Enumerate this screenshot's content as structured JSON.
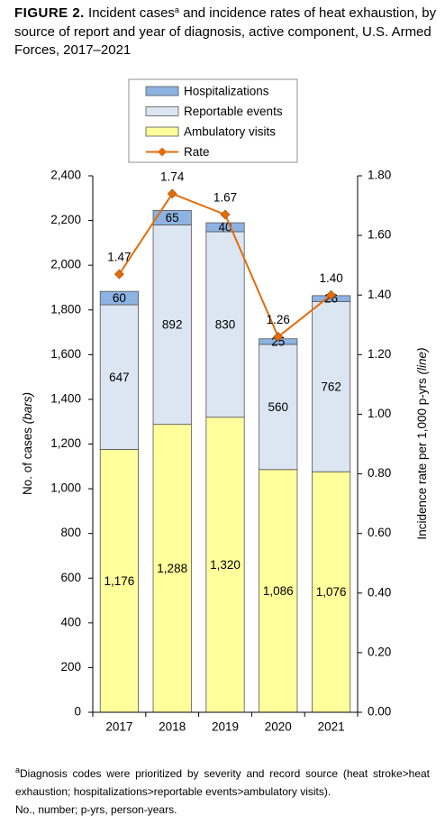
{
  "chart_data": {
    "type": "stacked-bar-line",
    "title_label": "FIGURE 2.",
    "title": "Incident cases",
    "title_superscript": "a",
    "title_rest": " and incidence rates of heat exhaustion, by source of report and year of diagnosis, active component, U.S. Armed Forces, 2017–2021",
    "categories": [
      "2017",
      "2018",
      "2019",
      "2020",
      "2021"
    ],
    "series": [
      {
        "name": "Ambulatory visits",
        "type": "bar",
        "color": "#ffff9c",
        "values": [
          1176,
          1288,
          1320,
          1086,
          1076
        ],
        "value_labels": [
          "1,176",
          "1,288",
          "1,320",
          "1,086",
          "1,076"
        ]
      },
      {
        "name": "Reportable events",
        "type": "bar",
        "color": "#dce6f2",
        "values": [
          647,
          892,
          830,
          560,
          762
        ]
      },
      {
        "name": "Hospitalizations",
        "type": "bar",
        "color": "#8db3e2",
        "values": [
          60,
          65,
          40,
          25,
          26
        ]
      },
      {
        "name": "Rate",
        "type": "line",
        "axis": "y2",
        "color": "#e36c0a",
        "values": [
          1.47,
          1.74,
          1.67,
          1.26,
          1.4
        ],
        "value_labels": [
          "1.47",
          "1.74",
          "1.67",
          "1.26",
          "1.40"
        ]
      }
    ],
    "ylabel": "No. of cases",
    "ylabel_note": "(bars)",
    "y2label": "Incidence rate per 1,000 p-yrs",
    "y2label_note": "(line)",
    "ylim": [
      0,
      2400
    ],
    "yticks": [
      0,
      200,
      400,
      600,
      800,
      {
        "value": 1000,
        "label": "1,000"
      },
      {
        "value": 1200,
        "label": "1,200"
      },
      {
        "value": 1400,
        "label": "1,400"
      },
      {
        "value": 1600,
        "label": "1,600"
      },
      {
        "value": 1800,
        "label": "1,800"
      },
      {
        "value": 2000,
        "label": "2,000"
      },
      {
        "value": 2200,
        "label": "2,200"
      },
      {
        "value": 2400,
        "label": "2,400"
      }
    ],
    "y2lim": [
      0,
      1.8
    ],
    "y2ticks": [
      {
        "value": 0,
        "label": "0.00"
      },
      {
        "value": 0.2,
        "label": "0.20"
      },
      {
        "value": 0.4,
        "label": "0.40"
      },
      {
        "value": 0.6,
        "label": "0.60"
      },
      {
        "value": 0.8,
        "label": "0.80"
      },
      {
        "value": 1.0,
        "label": "1.00"
      },
      {
        "value": 1.2,
        "label": "1.20"
      },
      {
        "value": 1.4,
        "label": "1.40"
      },
      {
        "value": 1.6,
        "label": "1.60"
      },
      {
        "value": 1.8,
        "label": "1.80"
      }
    ],
    "grid": false,
    "legend": "top",
    "footnote_superscript": "a",
    "footnote": "Diagnosis codes were prioritized by severity and record source (heat stroke>heat exhaustion; hospitalizations>reportable events>ambulatory visits).",
    "abbreviations": "No., number; p-yrs, person-years."
  }
}
